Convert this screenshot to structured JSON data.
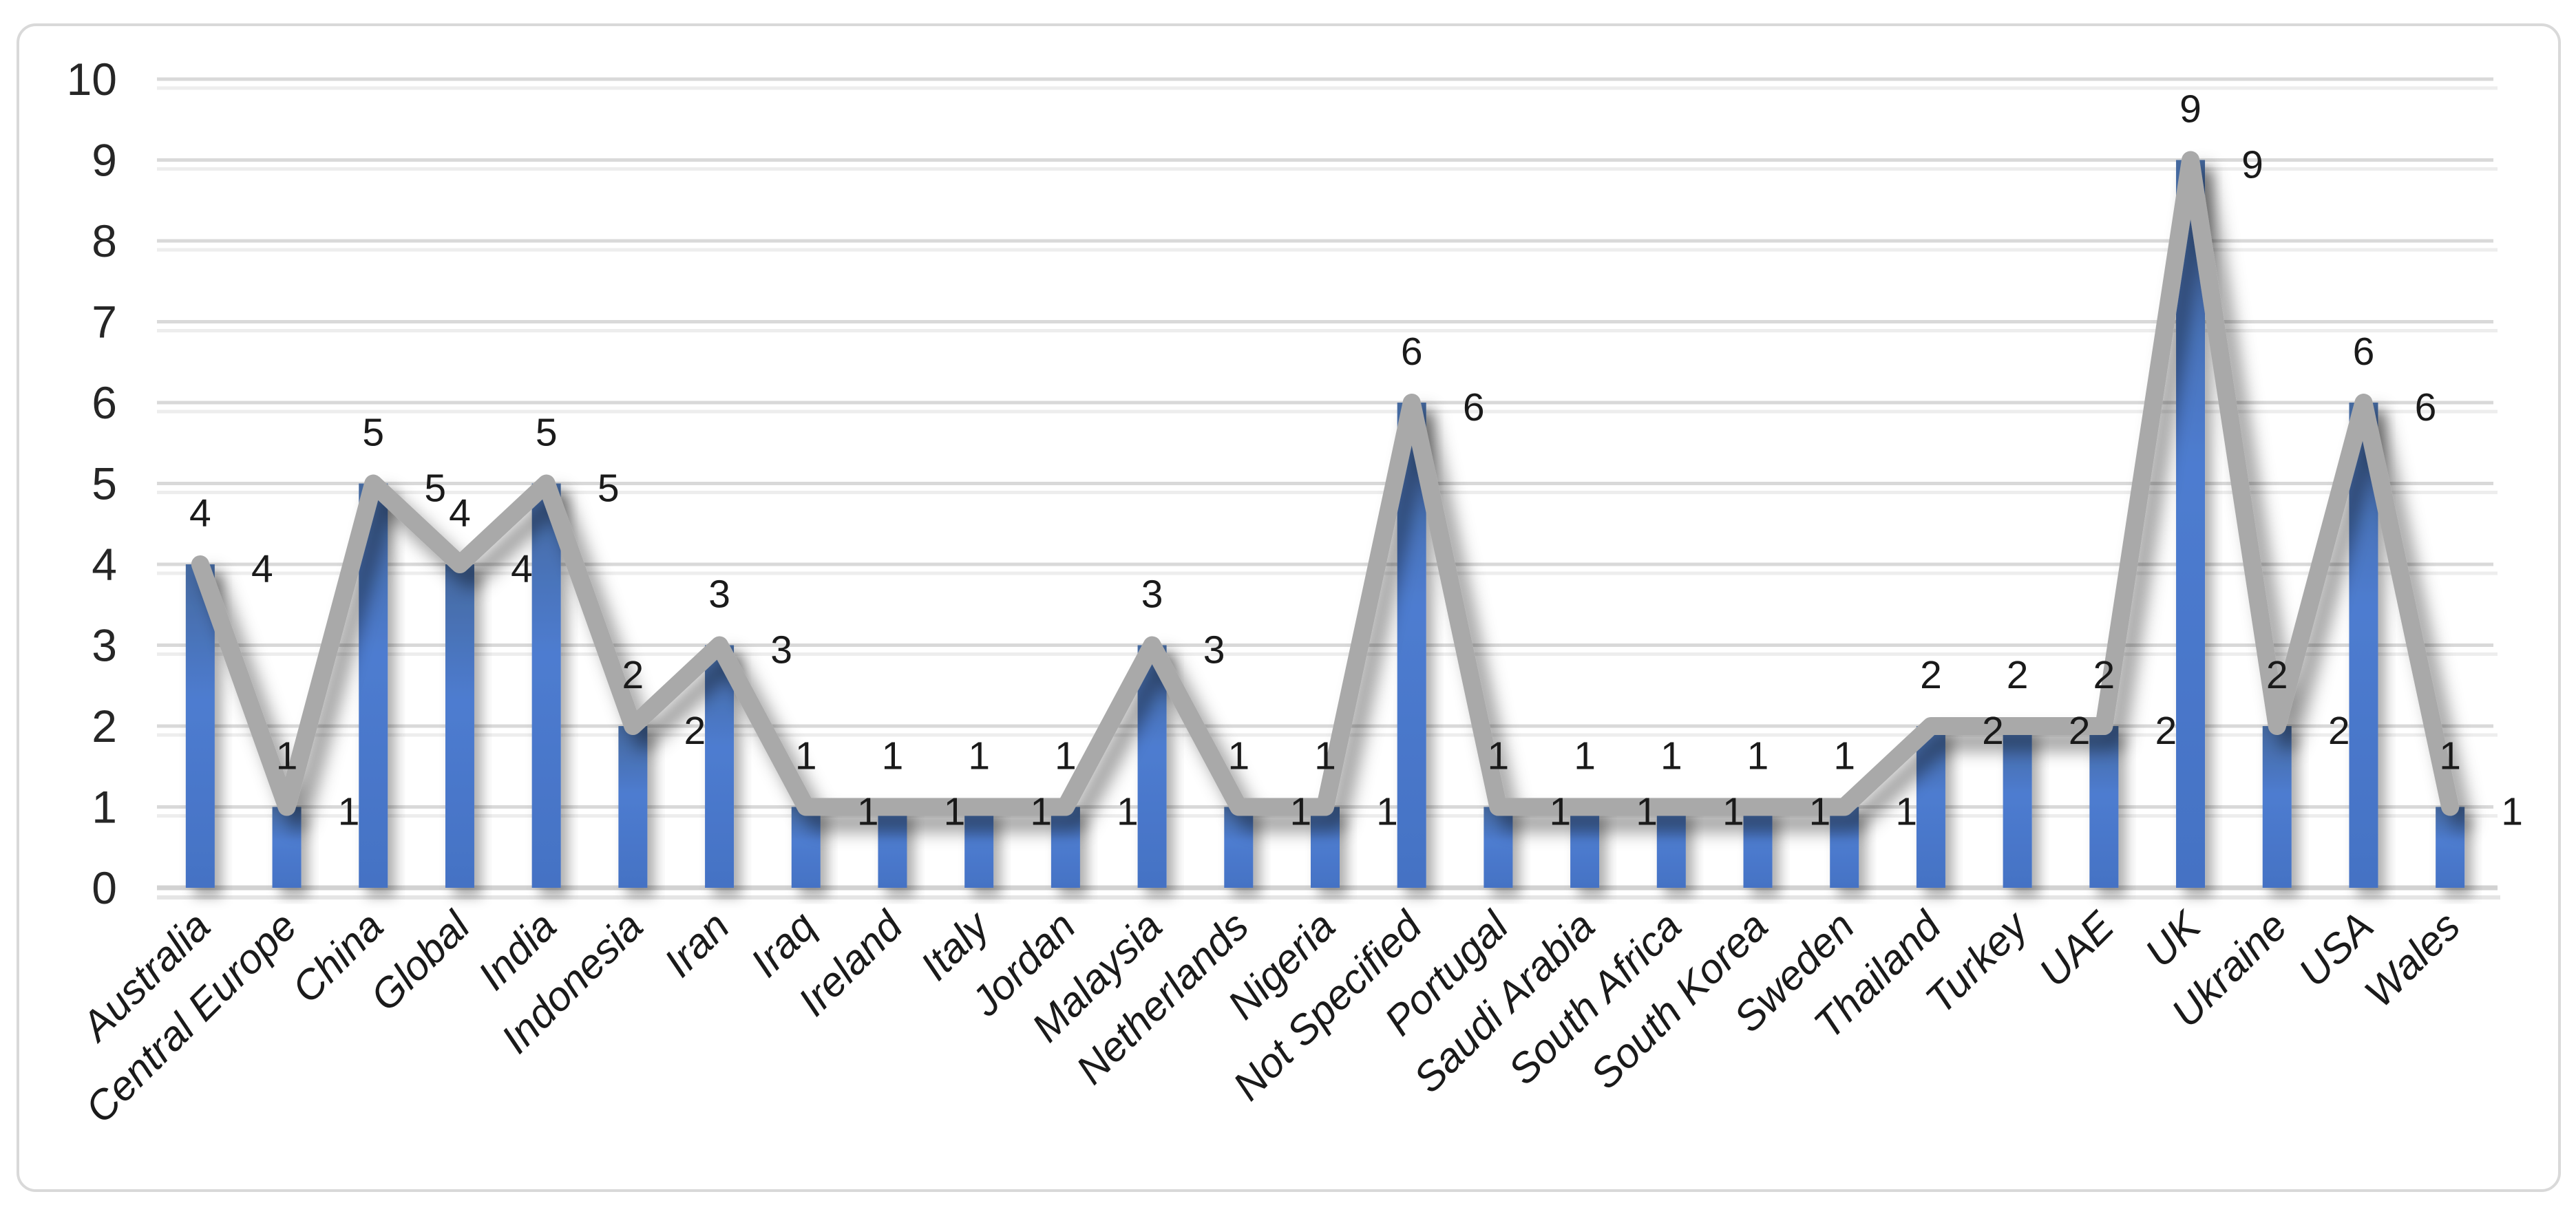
{
  "chart_data": {
    "type": "combo",
    "title": "",
    "categories": [
      "Australia",
      "Central Europe",
      "China",
      "Global",
      "India",
      "Indonesia",
      "Iran",
      "Iraq",
      "Ireland",
      "Italy",
      "Jordan",
      "Malaysia",
      "Netherlands",
      "Nigeria",
      "Not Specified",
      "Portugal",
      "Saudi Arabia",
      "South Africa",
      "South Korea",
      "Sweden",
      "Thailand",
      "Turkey",
      "UAE",
      "UK",
      "Ukraine",
      "USA",
      "Wales"
    ],
    "series": [
      {
        "name": "bar-series",
        "type": "bar",
        "values": [
          4,
          1,
          5,
          4,
          5,
          2,
          3,
          1,
          1,
          1,
          1,
          3,
          1,
          1,
          6,
          1,
          1,
          1,
          1,
          1,
          2,
          2,
          2,
          9,
          2,
          6,
          1
        ],
        "data_label_position": "above"
      },
      {
        "name": "line-series",
        "type": "line",
        "values": [
          4,
          1,
          5,
          4,
          5,
          2,
          3,
          1,
          1,
          1,
          1,
          3,
          1,
          1,
          6,
          1,
          1,
          1,
          1,
          1,
          2,
          2,
          2,
          9,
          2,
          6,
          1
        ],
        "data_label_position": "right"
      }
    ],
    "xlabel": "",
    "ylabel": "",
    "ylim": [
      0,
      10
    ],
    "yticks": [
      0,
      1,
      2,
      3,
      4,
      5,
      6,
      7,
      8,
      9,
      10
    ],
    "grid": true,
    "legend_position": "none",
    "colors": {
      "bar_top": "#44699F",
      "bar_mid": "#4E7CD0",
      "bar_base": "#4472C4",
      "line": "#A9A9A9",
      "gridline": "#D9D9D9",
      "axis_line": "#D2D2D2",
      "tick_text": "#262626",
      "data_label_text": "#1A1A1A",
      "category_text": "#1A1A1A",
      "chart_border": "#D9D9D9",
      "background": "#FFFFFF"
    }
  }
}
